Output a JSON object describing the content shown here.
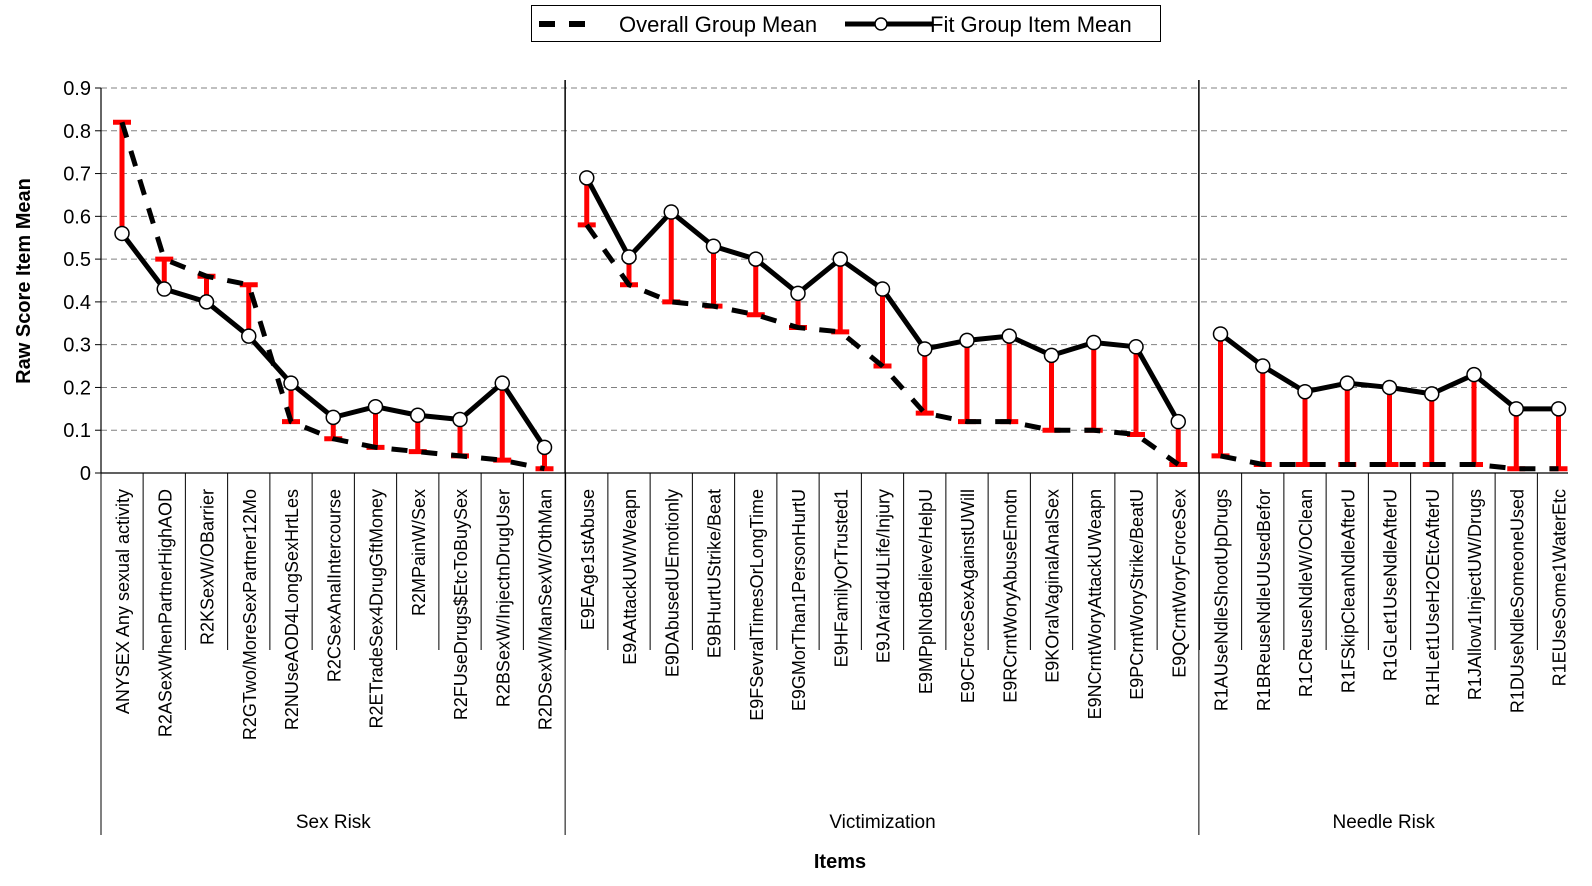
{
  "legend": {
    "overall_label": "Overall Group Mean",
    "fit_label": "Fit Group Item Mean"
  },
  "colors": {
    "overall": "#000000",
    "fit": "#000000",
    "diff_bar": "#ff0000",
    "grid": "#808080"
  },
  "chart_data": {
    "type": "line",
    "title": "",
    "xlabel": "Items",
    "ylabel": "Raw Score Item Mean",
    "ylim": [
      0,
      0.9
    ],
    "yticks": [
      "0",
      "0.1",
      "0.2",
      "0.3",
      "0.4",
      "0.5",
      "0.6",
      "0.7",
      "0.8",
      "0.9"
    ],
    "grid": "horizontal dashed",
    "legend_position": "top-center",
    "groups": [
      {
        "name": "Sex Risk",
        "items": [
          "ANYSEX Any sexual activity",
          "R2ASexWhenPartnerHighAOD",
          "R2KSexW/OBarrier",
          "R2GTwo/MoreSexPartner12Mo",
          "R2NUseAOD4LongSexHrtLes",
          "R2CSexAnalIntercourse",
          "R2ETradeSex4DrugGftMoney",
          "R2MPainW/Sex",
          "R2FUseDrugs$EtcToBuySex",
          "R2BSexW/InjectnDrugUser",
          "R2DSexW/ManSexW/OthMan"
        ],
        "overall": [
          0.82,
          0.5,
          0.46,
          0.44,
          0.12,
          0.08,
          0.06,
          0.05,
          0.04,
          0.03,
          0.01
        ],
        "fit": [
          0.56,
          0.43,
          0.4,
          0.32,
          0.21,
          0.13,
          0.155,
          0.135,
          0.125,
          0.21,
          0.06
        ]
      },
      {
        "name": "Victimization",
        "items": [
          "E9EAge1stAbuse",
          "E9AAttackUW/Weapn",
          "E9DAbusedUEmotionly",
          "E9BHurtUStrike/Beat",
          "E9FSevralTimesOrLongTime",
          "E9GMorThan1PersonHurtU",
          "E9HFamilyOrTrusted1",
          "E9JAraid4ULife/Injury",
          "E9MPplNotBelieve/HelpU",
          "E9CForceSexAgainstUWill",
          "E9RCrntWoryAbuseEmotn",
          "E9KOralVaginalAnalSex",
          "E9NCrntWoryAttackUWeapn",
          "E9PCrntWoryStrike/BeatU",
          "E9QCrntWoryForceSex"
        ],
        "overall": [
          0.58,
          0.44,
          0.4,
          0.39,
          0.37,
          0.34,
          0.33,
          0.25,
          0.14,
          0.12,
          0.12,
          0.1,
          0.1,
          0.09,
          0.02
        ],
        "fit": [
          0.69,
          0.505,
          0.61,
          0.53,
          0.5,
          0.42,
          0.5,
          0.43,
          0.29,
          0.31,
          0.32,
          0.275,
          0.305,
          0.295,
          0.12
        ]
      },
      {
        "name": "Needle Risk",
        "items": [
          "R1AUseNdleShootUpDrugs",
          "R1BReuseNdleUUsedBefor",
          "R1CReuseNdleW/OClean",
          "R1FSkipCleanNdleAfterU",
          "R1GLet1UseNdleAfterU",
          "R1HLet1UseH2OEtcAfterU",
          "R1JAllow1InjectUW/Drugs",
          "R1DUseNdleSomeoneUsed",
          "R1EUseSome1WaterEtc"
        ],
        "overall": [
          0.04,
          0.02,
          0.02,
          0.02,
          0.02,
          0.02,
          0.02,
          0.01,
          0.01
        ],
        "fit": [
          0.325,
          0.25,
          0.19,
          0.21,
          0.2,
          0.185,
          0.23,
          0.15,
          0.15
        ]
      }
    ]
  }
}
